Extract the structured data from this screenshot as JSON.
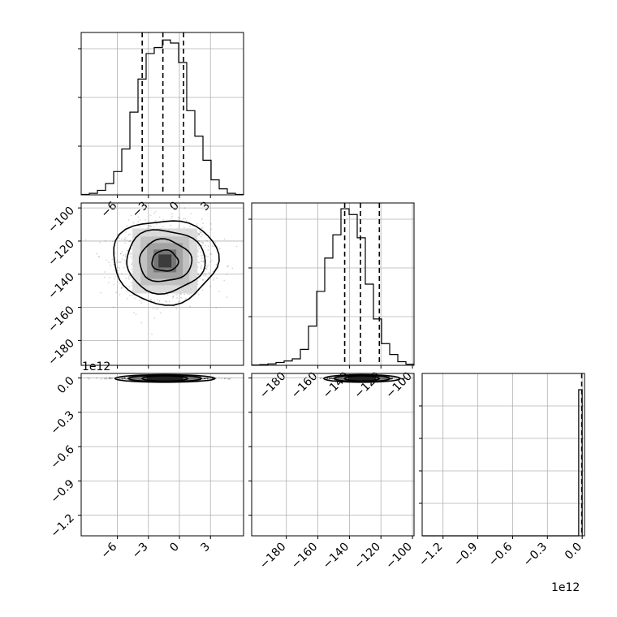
{
  "chart_data": {
    "type": "corner",
    "parameters": 3,
    "offset_labels": {
      "panel_31_y": "1e12",
      "panel_33_x": "1e12"
    },
    "panels": [
      {
        "id": "hist-param-1",
        "type": "histogram",
        "x_range": [
          -9.5,
          6.2
        ],
        "x_ticks": [
          -6,
          -3,
          0,
          3
        ],
        "x_tick_labels": [
          "−6",
          "−3",
          "0",
          "3"
        ],
        "bin_edges_start": -9.5,
        "bin_width": 0.785,
        "counts": [
          0.3,
          1.0,
          3.0,
          7.5,
          15.5,
          30.5,
          55.0,
          77.0,
          94.0,
          98.0,
          103.0,
          101.0,
          88.0,
          56.0,
          39.0,
          23.0,
          10.0,
          4.0,
          1.0,
          0.3
        ],
        "y_max": 108,
        "quantiles": [
          -3.6,
          -1.6,
          0.4
        ],
        "y_ticks_fraction": [
          0.3,
          0.6,
          0.9
        ]
      },
      {
        "id": "hist-param-2",
        "type": "histogram",
        "x_range": [
          -202,
          -99
        ],
        "x_ticks": [
          -180,
          -160,
          -140,
          -120,
          -100
        ],
        "x_tick_labels": [
          "−180",
          "−160",
          "−140",
          "−120",
          "−100"
        ],
        "bin_edges_start": -202,
        "bin_width": 5.15,
        "counts": [
          0.2,
          0.5,
          1.0,
          2.0,
          3.0,
          4.5,
          11.0,
          27.0,
          51.0,
          74.0,
          90.0,
          108.0,
          104.0,
          88.0,
          56.0,
          32.0,
          15.0,
          7.5,
          2.5,
          0.8
        ],
        "y_max": 112,
        "quantiles": [
          -143,
          -133,
          -121
        ],
        "y_ticks_fraction": [
          0.3,
          0.6,
          0.9
        ]
      },
      {
        "id": "hist-param-3",
        "type": "histogram",
        "x_range": [
          -1.38,
          0.02
        ],
        "x_ticks": [
          -1.2,
          -0.9,
          -0.6,
          -0.3,
          0.0
        ],
        "x_tick_labels": [
          "−1.2",
          "−0.9",
          "−0.6",
          "−0.3",
          "0.0"
        ],
        "offset_label": "1e12",
        "spike_x": [
          -0.03,
          0.0
        ],
        "spike_height_fraction": 0.9,
        "quantiles": [
          -0.007,
          -0.004,
          -0.001
        ],
        "y_ticks_fraction": [
          0.2,
          0.4,
          0.6,
          0.8
        ]
      },
      {
        "id": "scatter-2-vs-1",
        "type": "density-contour",
        "x_range": [
          -9.5,
          6.2
        ],
        "y_range": [
          -195,
          -97
        ],
        "y_ticks": [
          -100,
          -120,
          -140,
          -160,
          -180
        ],
        "y_tick_labels": [
          "−100",
          "−120",
          "−140",
          "−160",
          "−180"
        ],
        "center": [
          -1.4,
          -132
        ],
        "sigma": [
          2.2,
          11.0
        ],
        "contour_levels_sigma": [
          0.5,
          1.0,
          1.5,
          2.0
        ]
      },
      {
        "id": "scatter-3-vs-1",
        "type": "density-contour",
        "x_range": [
          -9.5,
          6.2
        ],
        "y_range": [
          -1.38,
          0.04
        ],
        "y_ticks": [
          0.0,
          -0.3,
          -0.6,
          -0.9,
          -1.2
        ],
        "y_tick_labels": [
          "0.0",
          "−0.3",
          "−0.6",
          "−0.9",
          "−1.2"
        ],
        "offset_label": "1e12",
        "center": [
          -1.4,
          -0.004
        ],
        "sigma": [
          2.2,
          0.006
        ]
      },
      {
        "id": "scatter-3-vs-2",
        "type": "density-contour",
        "x_range": [
          -202,
          -99
        ],
        "y_range": [
          -1.38,
          0.04
        ],
        "center": [
          -132,
          -0.004
        ],
        "sigma": [
          11.0,
          0.006
        ]
      }
    ]
  }
}
